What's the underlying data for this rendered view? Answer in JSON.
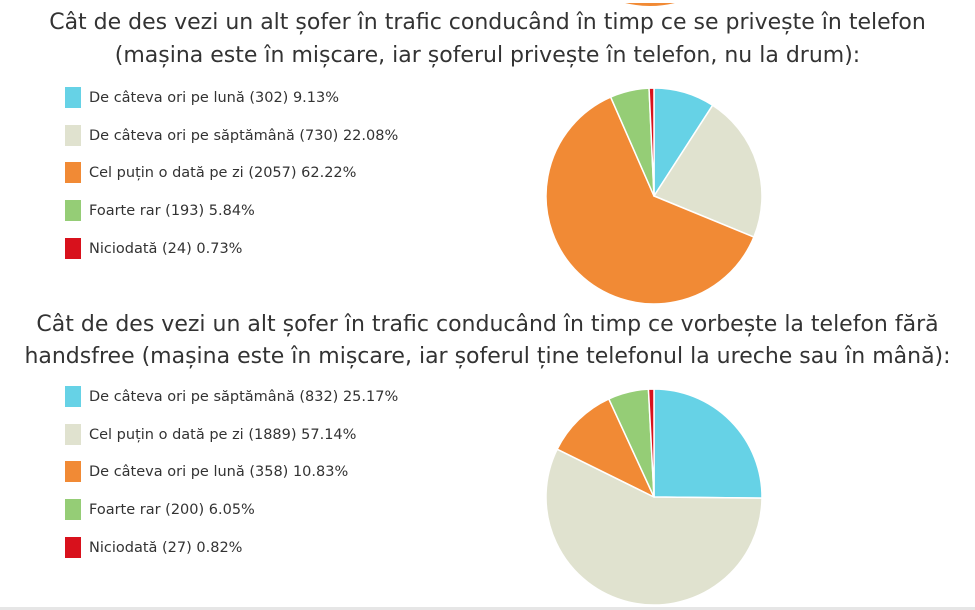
{
  "colors": {
    "cyan": "#66d2e6",
    "beige": "#e0e2cf",
    "orange": "#f18a35",
    "green": "#95cd76",
    "red": "#d8111c"
  },
  "chart_data": [
    {
      "type": "pie",
      "title_line1": "Cât de des vezi un alt șofer în trafic conducând în timp ce se privește în telefon",
      "title_line2": "(mașina este în mișcare, iar șoferul privește în telefon, nu la drum):",
      "legend_position": "left",
      "slices": [
        {
          "label": "De câteva ori pe lună (302) 9.13%",
          "category": "De câteva ori pe lună",
          "count": 302,
          "percent": 9.13,
          "color": "#66d2e6"
        },
        {
          "label": "De câteva ori pe săptămână (730) 22.08%",
          "category": "De câteva ori pe săptămână",
          "count": 730,
          "percent": 22.08,
          "color": "#e0e2cf"
        },
        {
          "label": "Cel puțin o dată pe zi (2057) 62.22%",
          "category": "Cel puțin o dată pe zi",
          "count": 2057,
          "percent": 62.22,
          "color": "#f18a35"
        },
        {
          "label": "Foarte rar (193) 5.84%",
          "category": "Foarte rar",
          "count": 193,
          "percent": 5.84,
          "color": "#95cd76"
        },
        {
          "label": "Niciodată (24) 0.73%",
          "category": "Niciodată",
          "count": 24,
          "percent": 0.73,
          "color": "#d8111c"
        }
      ]
    },
    {
      "type": "pie",
      "title_line1": "Cât de des vezi un alt șofer în trafic conducând în timp ce vorbește la telefon fără",
      "title_line2": "handsfree (mașina este în mișcare, iar șoferul ține telefonul la ureche sau în mână):",
      "legend_position": "left",
      "slices": [
        {
          "label": "De câteva ori pe săptămână (832) 25.17%",
          "category": "De câteva ori pe săptămână",
          "count": 832,
          "percent": 25.17,
          "color": "#66d2e6"
        },
        {
          "label": "Cel puțin o dată pe zi (1889) 57.14%",
          "category": "Cel puțin o dată pe zi",
          "count": 1889,
          "percent": 57.14,
          "color": "#e0e2cf"
        },
        {
          "label": "De câteva ori pe lună (358) 10.83%",
          "category": "De câteva ori pe lună",
          "count": 358,
          "percent": 10.83,
          "color": "#f18a35"
        },
        {
          "label": "Foarte rar (200) 6.05%",
          "category": "Foarte rar",
          "count": 200,
          "percent": 6.05,
          "color": "#95cd76"
        },
        {
          "label": "Niciodată (27) 0.82%",
          "category": "Niciodată",
          "count": 27,
          "percent": 0.82,
          "color": "#d8111c"
        }
      ]
    }
  ]
}
